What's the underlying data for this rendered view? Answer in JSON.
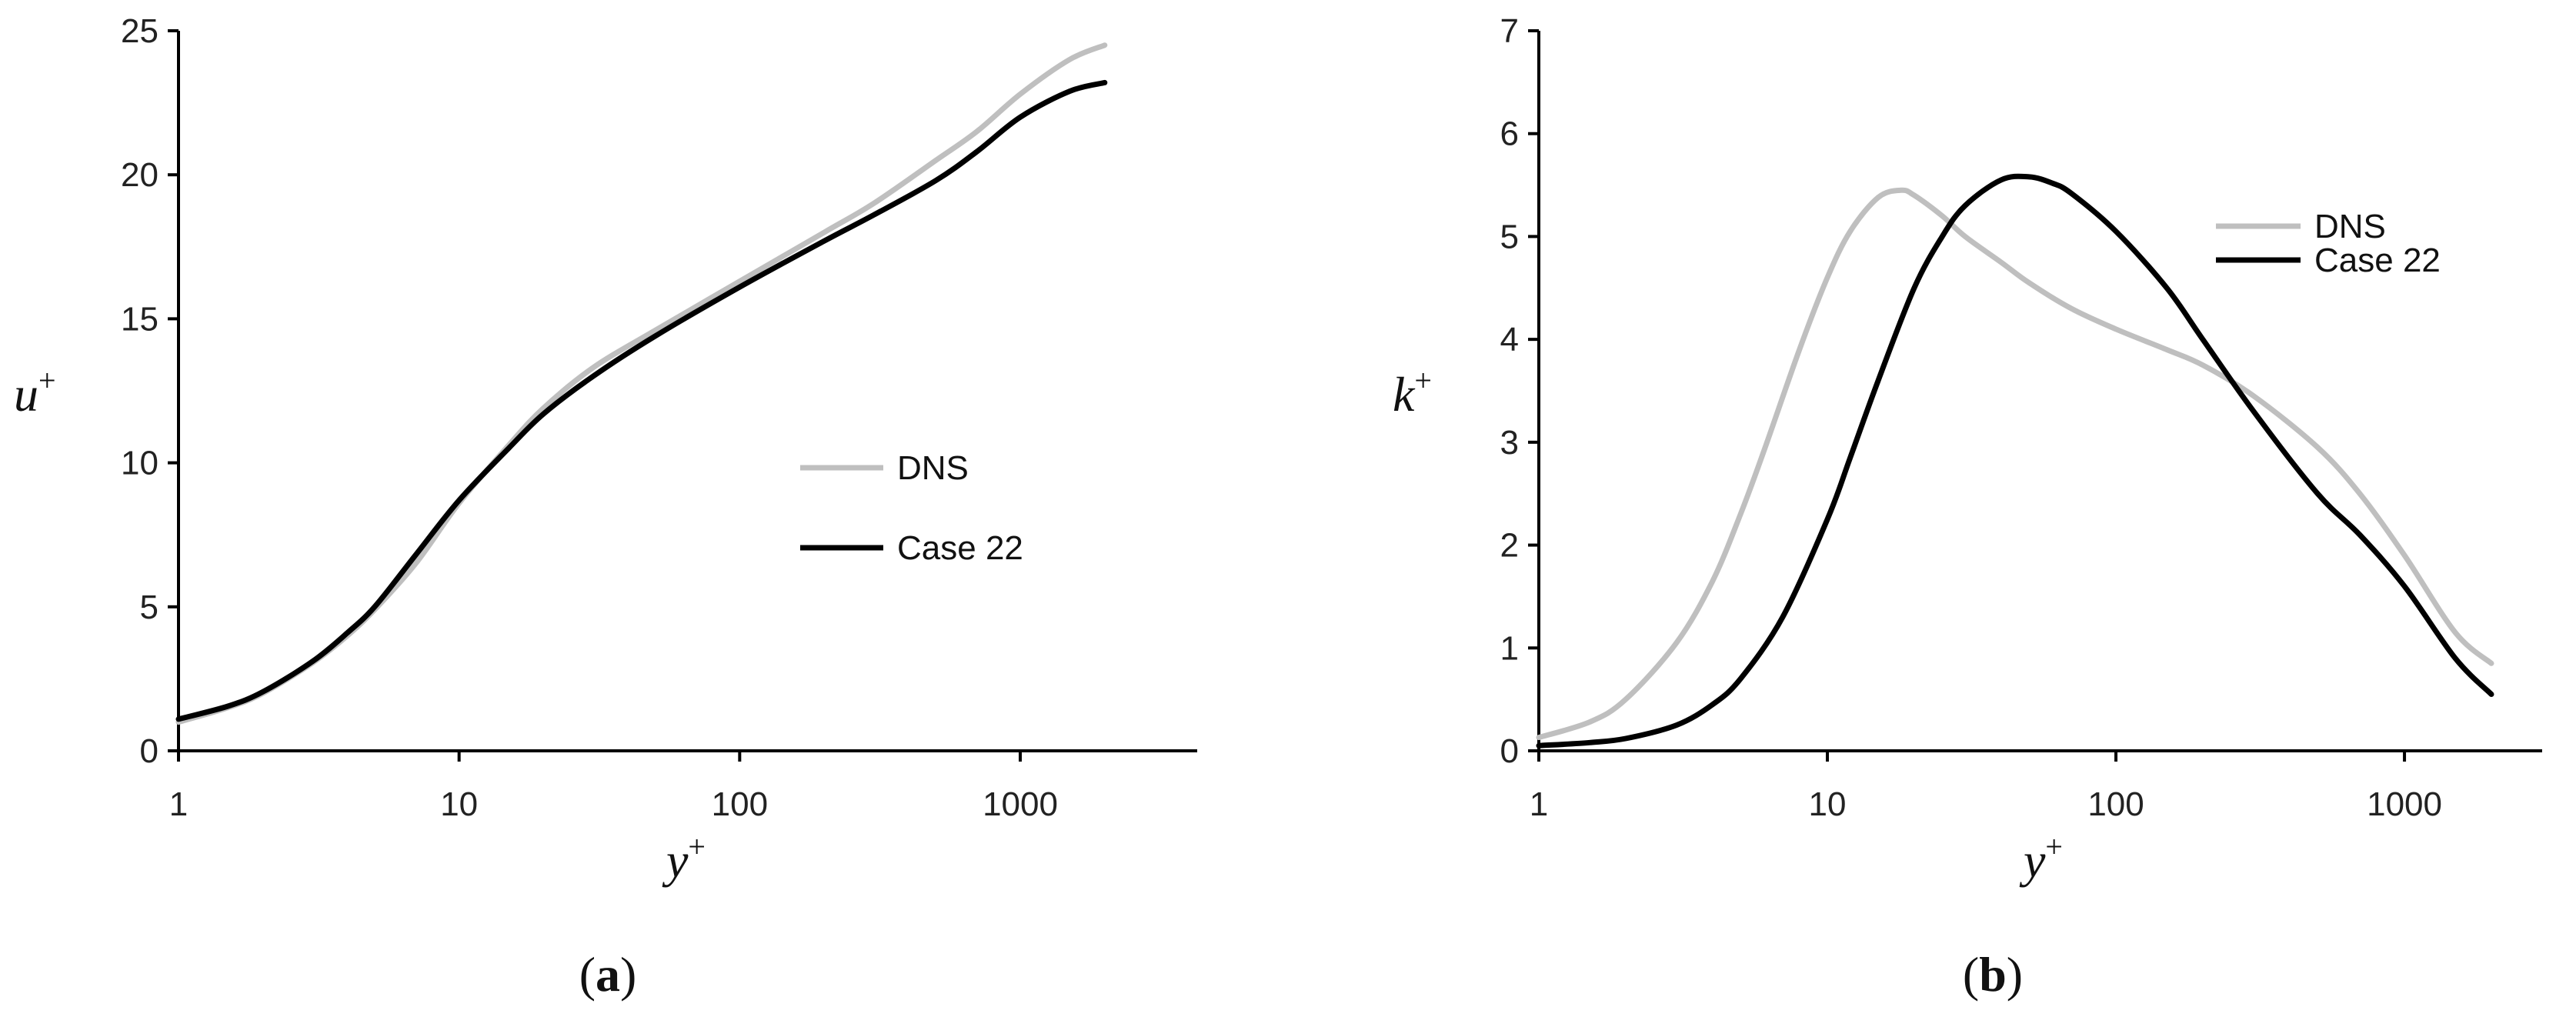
{
  "chart_data": [
    {
      "id": "a",
      "type": "line",
      "xscale": "log",
      "xlim": [
        1,
        3000
      ],
      "ylim": [
        0,
        25
      ],
      "xticks": [
        1,
        10,
        100,
        1000
      ],
      "xtick_labels": [
        "1",
        "10",
        "100",
        "1000"
      ],
      "yticks": [
        0,
        5,
        10,
        15,
        20,
        25
      ],
      "ytick_labels": [
        "0",
        "5",
        "10",
        "15",
        "20",
        "25"
      ],
      "ylabel": "u",
      "ylabel_sup": "+",
      "xlabel": "y",
      "xlabel_sup": "+",
      "panel_open": "(",
      "panel_letter": "a",
      "panel_close": ")",
      "legend_position": "center-right",
      "series": [
        {
          "name": "DNS",
          "color": "#bfbfbf",
          "x": [
            1,
            1.5,
            2,
            3,
            4,
            5,
            7,
            10,
            15,
            20,
            30,
            50,
            100,
            200,
            300,
            500,
            700,
            1000,
            1500,
            2000
          ],
          "y": [
            1.0,
            1.5,
            2.0,
            3.05,
            4.0,
            4.9,
            6.5,
            8.6,
            10.6,
            11.9,
            13.3,
            14.6,
            16.3,
            18.0,
            19.0,
            20.5,
            21.5,
            22.8,
            24.0,
            24.5
          ]
        },
        {
          "name": "Case 22",
          "color": "#000000",
          "x": [
            1,
            1.5,
            2,
            3,
            4,
            5,
            7,
            10,
            15,
            20,
            30,
            50,
            100,
            200,
            300,
            500,
            700,
            1000,
            1500,
            2000
          ],
          "y": [
            1.1,
            1.55,
            2.05,
            3.1,
            4.1,
            5.0,
            6.8,
            8.7,
            10.5,
            11.7,
            13.0,
            14.4,
            16.1,
            17.7,
            18.6,
            19.8,
            20.8,
            22.0,
            22.9,
            23.2
          ]
        }
      ]
    },
    {
      "id": "b",
      "type": "line",
      "xscale": "log",
      "xlim": [
        1,
        3000
      ],
      "ylim": [
        0,
        7
      ],
      "xticks": [
        1,
        10,
        100,
        1000
      ],
      "xtick_labels": [
        "1",
        "10",
        "100",
        "1000"
      ],
      "yticks": [
        0,
        1,
        2,
        3,
        4,
        5,
        6,
        7
      ],
      "ytick_labels": [
        "0",
        "1",
        "2",
        "3",
        "4",
        "5",
        "6",
        "7"
      ],
      "ylabel": "k",
      "ylabel_sup": "+",
      "xlabel": "y",
      "xlabel_sup": "+",
      "panel_open": "(",
      "panel_letter": "b",
      "panel_close": ")",
      "legend_position": "top-right",
      "series": [
        {
          "name": "DNS",
          "color": "#bfbfbf",
          "x": [
            1,
            1.5,
            2,
            3,
            4,
            5,
            6,
            8,
            10,
            12,
            15,
            18,
            20,
            25,
            30,
            40,
            50,
            70,
            100,
            150,
            200,
            300,
            500,
            700,
            1000,
            1500,
            2000
          ],
          "y": [
            0.13,
            0.28,
            0.5,
            1.05,
            1.65,
            2.3,
            2.9,
            3.9,
            4.6,
            5.05,
            5.38,
            5.45,
            5.4,
            5.2,
            5.0,
            4.75,
            4.55,
            4.3,
            4.1,
            3.9,
            3.75,
            3.45,
            2.95,
            2.5,
            1.9,
            1.15,
            0.85
          ]
        },
        {
          "name": "Case 22",
          "color": "#000000",
          "x": [
            1,
            1.5,
            2,
            3,
            4,
            5,
            7,
            10,
            12,
            15,
            20,
            25,
            30,
            40,
            50,
            60,
            70,
            100,
            150,
            200,
            300,
            500,
            700,
            1000,
            1500,
            2000
          ],
          "y": [
            0.05,
            0.08,
            0.12,
            0.25,
            0.45,
            0.7,
            1.3,
            2.25,
            2.85,
            3.6,
            4.5,
            5.0,
            5.3,
            5.55,
            5.58,
            5.52,
            5.42,
            5.05,
            4.5,
            4.0,
            3.3,
            2.5,
            2.1,
            1.6,
            0.9,
            0.55
          ]
        }
      ]
    }
  ]
}
